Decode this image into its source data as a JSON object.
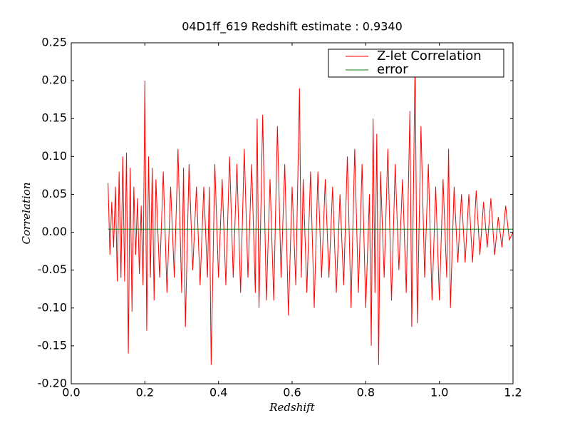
{
  "chart_data": {
    "type": "line",
    "title": "04D1ff_619 Redshift estimate : 0.9340",
    "x_label": "Redshift",
    "y_label": "Correlation",
    "xlim": [
      0,
      1.2
    ],
    "ylim": [
      -0.2,
      0.25
    ],
    "xticks": [
      {
        "value": 0,
        "label": "0.0"
      },
      0.2,
      0.4,
      0.6,
      0.8,
      {
        "value": 1,
        "label": "1.0"
      },
      1.2
    ],
    "yticks": [
      {
        "value": -0.2,
        "label": "-0.20"
      },
      -0.15,
      {
        "value": -0.1,
        "label": "-0.10"
      },
      -0.05,
      {
        "value": 0,
        "label": "0.00"
      },
      0.05,
      {
        "value": 0.1,
        "label": "0.10"
      },
      0.15,
      {
        "value": 0.2,
        "label": "0.20"
      },
      0.25
    ],
    "grid": false,
    "legend": "upper right",
    "series": [
      {
        "name": "Z-let Correlation",
        "color": "#ff0000",
        "x": [
          0.1,
          0.105,
          0.11,
          0.115,
          0.12,
          0.125,
          0.13,
          0.135,
          0.14,
          0.145,
          0.15,
          0.155,
          0.16,
          0.165,
          0.17,
          0.175,
          0.18,
          0.185,
          0.19,
          0.195,
          0.2,
          0.205,
          0.21,
          0.215,
          0.22,
          0.225,
          0.23,
          0.24,
          0.25,
          0.26,
          0.27,
          0.28,
          0.29,
          0.3,
          0.305,
          0.31,
          0.32,
          0.33,
          0.34,
          0.35,
          0.36,
          0.37,
          0.375,
          0.38,
          0.39,
          0.4,
          0.41,
          0.42,
          0.43,
          0.44,
          0.45,
          0.46,
          0.47,
          0.48,
          0.49,
          0.5,
          0.505,
          0.51,
          0.52,
          0.53,
          0.54,
          0.55,
          0.56,
          0.57,
          0.58,
          0.59,
          0.6,
          0.61,
          0.62,
          0.625,
          0.63,
          0.64,
          0.65,
          0.66,
          0.67,
          0.68,
          0.69,
          0.7,
          0.71,
          0.72,
          0.73,
          0.74,
          0.75,
          0.76,
          0.77,
          0.78,
          0.79,
          0.8,
          0.81,
          0.815,
          0.82,
          0.825,
          0.83,
          0.835,
          0.84,
          0.85,
          0.86,
          0.87,
          0.88,
          0.89,
          0.9,
          0.91,
          0.92,
          0.925,
          0.934,
          0.94,
          0.95,
          0.96,
          0.97,
          0.98,
          0.99,
          1.0,
          1.01,
          1.02,
          1.025,
          1.03,
          1.04,
          1.05,
          1.06,
          1.07,
          1.08,
          1.09,
          1.1,
          1.11,
          1.12,
          1.13,
          1.14,
          1.15,
          1.16,
          1.17,
          1.18,
          1.19,
          1.2
        ],
        "values": [
          0.065,
          -0.03,
          0.04,
          -0.02,
          0.06,
          -0.065,
          0.08,
          -0.06,
          0.1,
          -0.065,
          0.105,
          -0.16,
          0.085,
          -0.105,
          0.06,
          -0.03,
          0.045,
          -0.055,
          0.035,
          -0.07,
          0.2,
          -0.13,
          0.1,
          -0.06,
          0.085,
          -0.09,
          0.07,
          -0.06,
          0.08,
          -0.08,
          0.06,
          -0.06,
          0.11,
          -0.08,
          0.085,
          -0.125,
          0.09,
          -0.05,
          0.06,
          -0.07,
          0.06,
          -0.06,
          0.06,
          -0.175,
          0.09,
          -0.06,
          0.07,
          -0.07,
          0.1,
          -0.06,
          0.09,
          -0.08,
          0.11,
          -0.06,
          0.09,
          -0.08,
          0.15,
          -0.1,
          0.155,
          -0.09,
          0.07,
          -0.09,
          0.14,
          -0.06,
          0.09,
          -0.11,
          0.06,
          -0.07,
          0.19,
          -0.06,
          0.07,
          -0.08,
          0.08,
          -0.1,
          0.08,
          -0.06,
          0.07,
          -0.06,
          0.06,
          -0.08,
          0.05,
          -0.07,
          0.1,
          -0.1,
          0.11,
          -0.08,
          0.09,
          -0.1,
          0.05,
          -0.15,
          0.15,
          -0.08,
          0.13,
          -0.175,
          0.08,
          -0.06,
          0.11,
          -0.09,
          0.09,
          -0.05,
          0.07,
          -0.08,
          0.16,
          -0.125,
          0.23,
          -0.12,
          0.14,
          -0.06,
          0.09,
          -0.09,
          0.06,
          -0.09,
          0.07,
          -0.06,
          0.11,
          -0.1,
          0.06,
          -0.04,
          0.05,
          -0.04,
          0.05,
          -0.04,
          0.055,
          -0.03,
          0.04,
          -0.02,
          0.045,
          -0.03,
          0.02,
          -0.02,
          0.035,
          -0.01,
          0
        ]
      },
      {
        "name": "error",
        "color": "#008000",
        "x": [
          0.1,
          1.2
        ],
        "values": [
          0.004,
          0.004
        ]
      }
    ],
    "estimate": {
      "x": 0.934,
      "y": 0.23
    }
  }
}
